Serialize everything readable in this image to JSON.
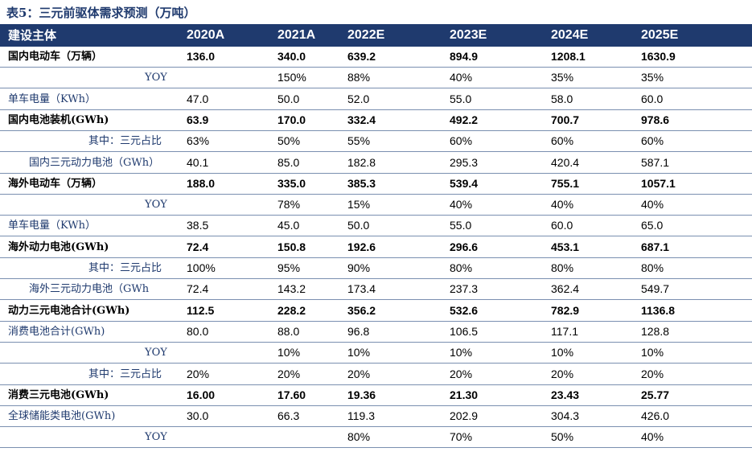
{
  "title": "表5：三元前驱体需求预测（万吨）",
  "header": {
    "label": "建设主体",
    "years": [
      "2020A",
      "2021A",
      "2022E",
      "2023E",
      "2024E",
      "2025E"
    ]
  },
  "rows": [
    {
      "label": "国内电动车（万辆）",
      "bold": true,
      "indent": 0,
      "values": [
        "136.0",
        "340.0",
        "639.2",
        "894.9",
        "1208.1",
        "1630.9"
      ]
    },
    {
      "label": "YOY",
      "bold": false,
      "indent": 3,
      "values": [
        "",
        "150%",
        "88%",
        "40%",
        "35%",
        "35%"
      ]
    },
    {
      "label": "单车电量（KWh）",
      "bold": false,
      "indent": 0,
      "values": [
        "47.0",
        "50.0",
        "52.0",
        "55.0",
        "58.0",
        "60.0"
      ]
    },
    {
      "label": "国内电池装机(GWh)",
      "bold": true,
      "indent": 0,
      "values": [
        "63.9",
        "170.0",
        "332.4",
        "492.2",
        "700.7",
        "978.6"
      ]
    },
    {
      "label": "其中：三元占比",
      "bold": false,
      "indent": 2,
      "values": [
        "63%",
        "50%",
        "55%",
        "60%",
        "60%",
        "60%"
      ]
    },
    {
      "label": "国内三元动力电池（GWh）",
      "bold": false,
      "indent": 1,
      "values": [
        "40.1",
        "85.0",
        "182.8",
        "295.3",
        "420.4",
        "587.1"
      ]
    },
    {
      "label": "海外电动车（万辆）",
      "bold": true,
      "indent": 0,
      "values": [
        "188.0",
        "335.0",
        "385.3",
        "539.4",
        "755.1",
        "1057.1"
      ]
    },
    {
      "label": "YOY",
      "bold": false,
      "indent": 3,
      "values": [
        "",
        "78%",
        "15%",
        "40%",
        "40%",
        "40%"
      ]
    },
    {
      "label": "单车电量（KWh）",
      "bold": false,
      "indent": 0,
      "values": [
        "38.5",
        "45.0",
        "50.0",
        "55.0",
        "60.0",
        "65.0"
      ]
    },
    {
      "label": "海外动力电池(GWh)",
      "bold": true,
      "indent": 0,
      "values": [
        "72.4",
        "150.8",
        "192.6",
        "296.6",
        "453.1",
        "687.1"
      ]
    },
    {
      "label": "其中：三元占比",
      "bold": false,
      "indent": 2,
      "values": [
        "100%",
        "95%",
        "90%",
        "80%",
        "80%",
        "80%"
      ]
    },
    {
      "label": "海外三元动力电池（GWh",
      "bold": false,
      "indent": 1,
      "values": [
        "72.4",
        "143.2",
        "173.4",
        "237.3",
        "362.4",
        "549.7"
      ]
    },
    {
      "label": "动力三元电池合计(GWh)",
      "bold": true,
      "indent": 0,
      "values": [
        "112.5",
        "228.2",
        "356.2",
        "532.6",
        "782.9",
        "1136.8"
      ]
    },
    {
      "label": "消费电池合计(GWh)",
      "bold": false,
      "indent": 0,
      "values": [
        "80.0",
        "88.0",
        "96.8",
        "106.5",
        "117.1",
        "128.8"
      ]
    },
    {
      "label": "YOY",
      "bold": false,
      "indent": 3,
      "values": [
        "",
        "10%",
        "10%",
        "10%",
        "10%",
        "10%"
      ]
    },
    {
      "label": "其中：三元占比",
      "bold": false,
      "indent": 2,
      "values": [
        "20%",
        "20%",
        "20%",
        "20%",
        "20%",
        "20%"
      ]
    },
    {
      "label": "消费三元电池(GWh)",
      "bold": true,
      "indent": 0,
      "values": [
        "16.00",
        "17.60",
        "19.36",
        "21.30",
        "23.43",
        "25.77"
      ]
    },
    {
      "label": "全球储能类电池(GWh)",
      "bold": false,
      "indent": 0,
      "values": [
        "30.0",
        "66.3",
        "119.3",
        "202.9",
        "304.3",
        "426.0"
      ]
    },
    {
      "label": "YOY",
      "bold": false,
      "indent": 3,
      "values": [
        "",
        "",
        "80%",
        "70%",
        "50%",
        "40%"
      ]
    }
  ]
}
